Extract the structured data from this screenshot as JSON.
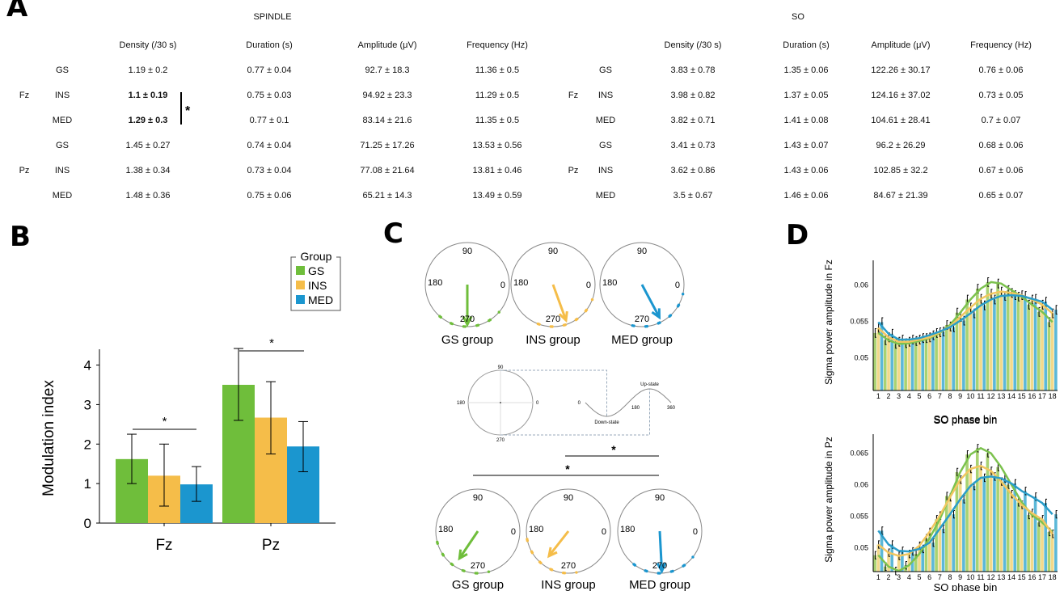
{
  "panels": {
    "a": "A",
    "b": "B",
    "c": "C",
    "d": "D"
  },
  "table_spindle": {
    "title": "SPINDLE",
    "headers": [
      "Density (/30 s)",
      "Duration (s)",
      "Amplitude (μV)",
      "Frequency (Hz)"
    ],
    "rows": [
      {
        "site": "",
        "group": "GS",
        "values": [
          "1.19 ± 0.2",
          "0.77 ± 0.04",
          "92.7 ± 18.3",
          "11.36 ± 0.5"
        ],
        "bold": false
      },
      {
        "site": "Fz",
        "group": "INS",
        "values": [
          "1.1 ± 0.19",
          "0.75 ± 0.03",
          "94.92 ± 23.3",
          "11.29 ± 0.5"
        ],
        "bold": true
      },
      {
        "site": "",
        "group": "MED",
        "values": [
          "1.29 ± 0.3",
          "0.77 ± 0.1",
          "83.14 ± 21.6",
          "11.35 ± 0.5"
        ],
        "bold": true
      },
      {
        "site": "",
        "group": "GS",
        "values": [
          "1.45 ± 0.27",
          "0.74 ± 0.04",
          "71.25 ± 17.26",
          "13.53 ± 0.56"
        ],
        "bold": false
      },
      {
        "site": "Pz",
        "group": "INS",
        "values": [
          "1.38 ± 0.34",
          "0.73 ± 0.04",
          "77.08 ± 21.64",
          "13.81 ± 0.46"
        ],
        "bold": false
      },
      {
        "site": "",
        "group": "MED",
        "values": [
          "1.48 ± 0.36",
          "0.75 ± 0.06",
          "65.21 ± 14.3",
          "13.49 ± 0.59"
        ],
        "bold": false
      }
    ],
    "significance": "*"
  },
  "table_so": {
    "title": "SO",
    "headers": [
      "Density (/30 s)",
      "Duration (s)",
      "Amplitude (μV)",
      "Frequency (Hz)"
    ],
    "rows": [
      {
        "site": "",
        "group": "GS",
        "values": [
          "3.83 ± 0.78",
          "1.35 ± 0.06",
          "122.26 ± 30.17",
          "0.76 ± 0.06"
        ]
      },
      {
        "site": "Fz",
        "group": "INS",
        "values": [
          "3.98 ± 0.82",
          "1.37 ± 0.05",
          "124.16 ± 37.02",
          "0.73 ± 0.05"
        ]
      },
      {
        "site": "",
        "group": "MED",
        "values": [
          "3.82 ± 0.71",
          "1.41 ± 0.08",
          "104.61 ± 28.41",
          "0.7 ± 0.07"
        ]
      },
      {
        "site": "",
        "group": "GS",
        "values": [
          "3.41 ± 0.73",
          "1.43 ± 0.07",
          "96.2 ± 26.29",
          "0.68 ± 0.06"
        ]
      },
      {
        "site": "Pz",
        "group": "INS",
        "values": [
          "3.62 ± 0.86",
          "1.43 ± 0.06",
          "102.85 ± 32.2",
          "0.67 ± 0.06"
        ]
      },
      {
        "site": "",
        "group": "MED",
        "values": [
          "3.5 ± 0.67",
          "1.46 ± 0.06",
          "84.67 ± 21.39",
          "0.65 ± 0.07"
        ]
      }
    ]
  },
  "colors": {
    "GS": "#6fbe3b",
    "INS": "#f5bd49",
    "MED": "#1b96cf",
    "GS_light": "#a9d272",
    "INS_light": "#f2d98a",
    "MED_light": "#5cb8d8"
  },
  "chart_data": [
    {
      "id": "B",
      "type": "bar",
      "title": "",
      "xlabel": "",
      "ylabel": "Modulation index",
      "categories": [
        "Fz",
        "Pz"
      ],
      "ylim": [
        0,
        4.4
      ],
      "yticks": [
        0,
        1,
        2,
        3,
        4
      ],
      "legend": {
        "title": "Group",
        "position": "top-right",
        "entries": [
          "GS",
          "INS",
          "MED"
        ]
      },
      "series": [
        {
          "name": "GS",
          "values": [
            1.62,
            3.5
          ],
          "err_low": [
            1.0,
            2.6
          ],
          "err_high": [
            2.25,
            4.42
          ]
        },
        {
          "name": "INS",
          "values": [
            1.2,
            2.67
          ],
          "err_low": [
            0.43,
            1.75
          ],
          "err_high": [
            2.0,
            3.58
          ]
        },
        {
          "name": "MED",
          "values": [
            0.98,
            1.94
          ],
          "err_low": [
            0.55,
            1.3
          ],
          "err_high": [
            1.43,
            2.57
          ]
        }
      ],
      "annotations": [
        {
          "category": "Fz",
          "label": "*",
          "between": [
            "GS",
            "MED"
          ]
        },
        {
          "category": "Pz",
          "label": "*",
          "between": [
            "GS",
            "MED"
          ]
        }
      ]
    },
    {
      "id": "C",
      "type": "scatter",
      "subtype": "polar",
      "angle_labels": [
        "90",
        "0",
        "270",
        "180"
      ],
      "rows": [
        {
          "groups": [
            {
              "name": "GS group",
              "mean_angle": 270,
              "vector_length": 0.95
            },
            {
              "name": "INS group",
              "mean_angle": 290,
              "vector_length": 0.9
            },
            {
              "name": "MED group",
              "mean_angle": 298,
              "vector_length": 0.88
            }
          ]
        },
        {
          "groups": [
            {
              "name": "GS group",
              "mean_angle": 236,
              "vector_length": 0.78
            },
            {
              "name": "INS group",
              "mean_angle": 232,
              "vector_length": 0.75
            },
            {
              "name": "MED group",
              "mean_angle": 273,
              "vector_length": 0.95
            }
          ]
        }
      ],
      "schematic": {
        "circle_labels": [
          "90",
          "180",
          "0",
          "270"
        ],
        "wave_labels": [
          "0",
          "180",
          "360"
        ],
        "up_state": "Up-state",
        "down_state": "Down-state"
      },
      "annotations": [
        {
          "label": "*",
          "between": [
            "INS group",
            "MED group"
          ]
        },
        {
          "label": "*",
          "between": [
            "GS group",
            "MED group"
          ]
        }
      ]
    },
    {
      "id": "D-Fz",
      "type": "bar",
      "xlabel": "SO phase bin",
      "ylabel": "Sigma power amplitude in Fz",
      "categories": [
        "1",
        "2",
        "3",
        "4",
        "5",
        "6",
        "7",
        "8",
        "9",
        "10",
        "11",
        "12",
        "13",
        "14",
        "15",
        "16",
        "17",
        "18"
      ],
      "ylim": [
        0.0455,
        0.0625
      ],
      "yticks": [
        0.05,
        0.055,
        0.06
      ],
      "series": [
        {
          "name": "GS",
          "values": [
            0.0534,
            0.0524,
            0.0519,
            0.052,
            0.0523,
            0.0527,
            0.0534,
            0.0545,
            0.0562,
            0.058,
            0.0595,
            0.0604,
            0.0602,
            0.0593,
            0.0584,
            0.0573,
            0.0563,
            0.0549
          ]
        },
        {
          "name": "INS",
          "values": [
            0.0541,
            0.0528,
            0.0522,
            0.0522,
            0.0525,
            0.0528,
            0.0535,
            0.0543,
            0.0556,
            0.0569,
            0.0581,
            0.0588,
            0.0591,
            0.0589,
            0.0586,
            0.058,
            0.0573,
            0.0561
          ]
        },
        {
          "name": "MED",
          "values": [
            0.0549,
            0.0533,
            0.0525,
            0.0525,
            0.0527,
            0.0531,
            0.0536,
            0.0542,
            0.0551,
            0.0561,
            0.0572,
            0.058,
            0.0585,
            0.0586,
            0.0585,
            0.0581,
            0.0577,
            0.0566
          ]
        }
      ]
    },
    {
      "id": "D-Pz",
      "type": "bar",
      "title": "SO phase bin",
      "xlabel": "SO phase bin",
      "ylabel": "Sigma power amplitude in Pz",
      "categories": [
        "1",
        "2",
        "3",
        "4",
        "5",
        "6",
        "7",
        "8",
        "9",
        "10",
        "11",
        "12",
        "13",
        "14",
        "15",
        "16",
        "17",
        "18"
      ],
      "ylim": [
        0.0462,
        0.067
      ],
      "yticks": [
        0.05,
        0.055,
        0.06,
        0.065
      ],
      "series": [
        {
          "name": "GS",
          "values": [
            0.0488,
            0.047,
            0.0463,
            0.0472,
            0.049,
            0.0515,
            0.0545,
            0.0582,
            0.062,
            0.0648,
            0.0658,
            0.065,
            0.0628,
            0.06,
            0.0572,
            0.0552,
            0.054,
            0.0525
          ]
        },
        {
          "name": "INS",
          "values": [
            0.0505,
            0.0492,
            0.0487,
            0.049,
            0.0503,
            0.0525,
            0.0551,
            0.058,
            0.0608,
            0.0625,
            0.063,
            0.0622,
            0.0605,
            0.0585,
            0.0568,
            0.0555,
            0.0545,
            0.0522
          ]
        },
        {
          "name": "MED",
          "values": [
            0.0527,
            0.0505,
            0.0495,
            0.0494,
            0.0498,
            0.0508,
            0.053,
            0.0553,
            0.0577,
            0.0598,
            0.0611,
            0.0613,
            0.061,
            0.0602,
            0.059,
            0.0581,
            0.0571,
            0.0553
          ]
        }
      ]
    }
  ]
}
